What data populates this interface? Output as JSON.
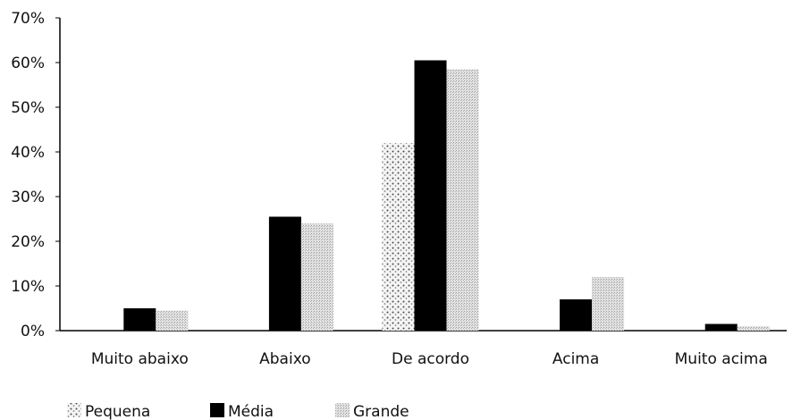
{
  "chart_data": {
    "type": "bar",
    "title": "",
    "xlabel": "",
    "ylabel": "",
    "ylim": [
      0,
      70
    ],
    "y_tick_step": 10,
    "y_tick_format": "percent",
    "y_ticks": [
      "0%",
      "10%",
      "20%",
      "30%",
      "40%",
      "50%",
      "60%",
      "70%"
    ],
    "categories": [
      "Muito abaixo",
      "Abaixo",
      "De acordo",
      "Acima",
      "Muito acima"
    ],
    "series": [
      {
        "name": "Pequena",
        "values": [
          0,
          0,
          42,
          0,
          0
        ],
        "color": "#9a9a9a",
        "pattern": "sparse-dots"
      },
      {
        "name": "Média",
        "values": [
          5,
          25.5,
          60.5,
          7,
          1.5
        ],
        "color": "#000000",
        "pattern": "solid"
      },
      {
        "name": "Grande",
        "values": [
          4.5,
          24,
          58.5,
          12,
          1
        ],
        "color": "#c4c4c4",
        "pattern": "dense-dots"
      }
    ],
    "grid": false,
    "legend_position": "bottom-left"
  }
}
